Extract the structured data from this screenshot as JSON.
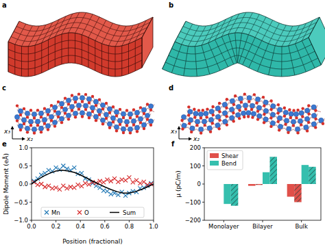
{
  "figure": {
    "panel_labels": [
      "a",
      "b",
      "c",
      "d"
    ],
    "axes_labels": [
      "x₃",
      "x₂"
    ]
  },
  "chart_data": [
    {
      "type": "scatter",
      "panel_label": "e",
      "x_label": "Position (fractional)",
      "y_label": "Dipole Moment (eÅ)",
      "xlim": [
        0,
        1
      ],
      "ylim": [
        -1,
        1
      ],
      "xticks": [
        {
          "value": 0,
          "label": "0.0"
        },
        {
          "value": 0.2,
          "label": "0.2"
        },
        {
          "value": 0.4,
          "label": "0.4"
        },
        {
          "value": 0.6,
          "label": "0.6"
        },
        {
          "value": 0.8,
          "label": "0.8"
        },
        {
          "value": 1,
          "label": "1.0"
        }
      ],
      "yticks": [
        {
          "value": -1,
          "label": "−1.0"
        },
        {
          "value": -0.5,
          "label": "−0.5"
        },
        {
          "value": 0,
          "label": "0.0"
        },
        {
          "value": 0.5,
          "label": "0.5"
        },
        {
          "value": 1,
          "label": "1.0"
        }
      ],
      "legend": "lower center",
      "series": [
        {
          "name": "Mn",
          "color": "#1f77b4",
          "marker": "x",
          "x": [
            0.02,
            0.05,
            0.08,
            0.11,
            0.14,
            0.17,
            0.2,
            0.23,
            0.26,
            0.29,
            0.32,
            0.35,
            0.38,
            0.41,
            0.44,
            0.47,
            0.5,
            0.53,
            0.56,
            0.59,
            0.62,
            0.65,
            0.68,
            0.71,
            0.74,
            0.77,
            0.8,
            0.83,
            0.86,
            0.89,
            0.92,
            0.95,
            0.98
          ],
          "values": [
            0.08,
            0.15,
            0.25,
            0.3,
            0.38,
            0.35,
            0.45,
            0.4,
            0.5,
            0.42,
            0.38,
            0.45,
            0.28,
            0.3,
            0.15,
            0.12,
            0.02,
            -0.05,
            -0.1,
            -0.18,
            -0.2,
            -0.28,
            -0.25,
            -0.3,
            -0.22,
            -0.32,
            -0.25,
            -0.2,
            -0.22,
            -0.12,
            -0.1,
            -0.05,
            0.02
          ]
        },
        {
          "name": "O",
          "color": "#d62728",
          "marker": "x",
          "x": [
            0.02,
            0.05,
            0.08,
            0.11,
            0.14,
            0.17,
            0.2,
            0.23,
            0.26,
            0.29,
            0.32,
            0.35,
            0.38,
            0.41,
            0.44,
            0.47,
            0.5,
            0.53,
            0.56,
            0.59,
            0.62,
            0.65,
            0.68,
            0.71,
            0.74,
            0.77,
            0.8,
            0.83,
            0.86,
            0.89,
            0.92,
            0.95,
            0.98
          ],
          "values": [
            0.05,
            -0.02,
            0.0,
            -0.08,
            -0.05,
            -0.12,
            -0.1,
            -0.15,
            -0.05,
            -0.12,
            -0.08,
            -0.1,
            -0.02,
            -0.06,
            0.02,
            -0.01,
            0.05,
            0.03,
            0.08,
            0.05,
            0.12,
            0.08,
            0.15,
            0.06,
            0.12,
            0.1,
            0.18,
            0.05,
            0.1,
            0.02,
            0.06,
            -0.02,
            0.0
          ]
        },
        {
          "name": "Sum",
          "type": "line",
          "color": "#000000",
          "x": [
            0,
            0.05,
            0.1,
            0.15,
            0.2,
            0.25,
            0.3,
            0.35,
            0.4,
            0.45,
            0.5,
            0.55,
            0.6,
            0.65,
            0.7,
            0.75,
            0.8,
            0.85,
            0.9,
            0.95,
            1
          ],
          "values": [
            0.0,
            0.12,
            0.22,
            0.3,
            0.36,
            0.38,
            0.36,
            0.32,
            0.25,
            0.17,
            0.08,
            0.0,
            -0.08,
            -0.15,
            -0.21,
            -0.25,
            -0.25,
            -0.21,
            -0.15,
            -0.08,
            0.0
          ]
        }
      ]
    },
    {
      "type": "bar",
      "panel_label": "f",
      "y_label": "μ (pC/m)",
      "categories": [
        "Monolayer",
        "Bilayer",
        "Bulk"
      ],
      "ylim": [
        -200,
        200
      ],
      "yticks": [
        {
          "value": -200,
          "label": "−200"
        },
        {
          "value": -100,
          "label": "−100"
        },
        0,
        100,
        200
      ],
      "legend": "upper left",
      "series": [
        {
          "name": "Shear",
          "color": "#e0504a",
          "values": [
            0,
            -10,
            -70
          ]
        },
        {
          "color": "#e0504a",
          "line_style": "hatched",
          "values": [
            0,
            -5,
            -100
          ]
        },
        {
          "name": "Bend",
          "color": "#35bfae",
          "values": [
            -110,
            65,
            105
          ]
        },
        {
          "color": "#35bfae",
          "line_style": "hatched",
          "values": [
            -120,
            150,
            95
          ]
        }
      ]
    }
  ]
}
